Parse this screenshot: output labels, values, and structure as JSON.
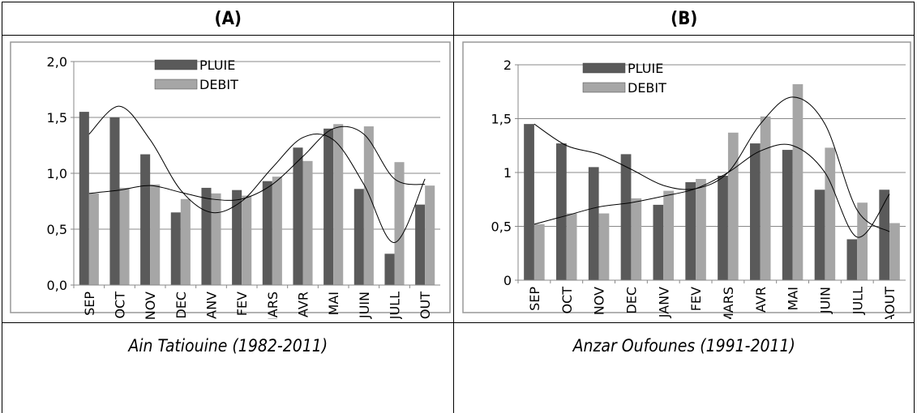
{
  "table": {
    "headers": [
      "(A)",
      "(B)"
    ],
    "captions": [
      "Ain Tatiouine (1982-2011)",
      "Anzar Oufounes (1991-2011)"
    ]
  },
  "chart_data": [
    {
      "type": "bar",
      "categories": [
        "SEP",
        "OCT",
        "NOV",
        "DEC",
        "JANV",
        "FEV",
        "MARS",
        "AVR",
        "MAI",
        "JUIN",
        "JULL",
        "AOUT"
      ],
      "series": [
        {
          "name": "PLUIE",
          "color": "#5a5a5a",
          "values": [
            1.55,
            1.5,
            1.17,
            0.65,
            0.87,
            0.85,
            0.93,
            1.23,
            1.4,
            0.86,
            0.28,
            0.72
          ],
          "trend_values": [
            1.35,
            1.6,
            1.3,
            0.85,
            0.65,
            0.75,
            1.05,
            1.32,
            1.3,
            0.9,
            0.38,
            0.95
          ]
        },
        {
          "name": "DEBIT",
          "color": "#a6a6a6",
          "values": [
            0.82,
            0.87,
            0.9,
            0.77,
            0.82,
            0.8,
            0.97,
            1.11,
            1.44,
            1.42,
            1.1,
            0.89
          ],
          "trend_values": [
            0.82,
            0.85,
            0.89,
            0.83,
            0.77,
            0.77,
            0.9,
            1.15,
            1.4,
            1.35,
            0.95,
            0.9
          ]
        }
      ],
      "ylim": [
        0,
        2
      ],
      "yticks": [
        {
          "value": 0,
          "label": "0,0"
        },
        {
          "value": 0.5,
          "label": "0,5"
        },
        {
          "value": 1,
          "label": "1,0"
        },
        {
          "value": 1.5,
          "label": "1,5"
        },
        {
          "value": 2,
          "label": "2,0"
        }
      ],
      "grid": true
    },
    {
      "type": "bar",
      "categories": [
        "SEP",
        "OCT",
        "NOV",
        "DEC",
        "JANV",
        "FEV",
        "MARS",
        "AVR",
        "MAI",
        "JUIN",
        "JULL",
        "AOUT"
      ],
      "series": [
        {
          "name": "PLUIE",
          "color": "#5a5a5a",
          "values": [
            1.45,
            1.27,
            1.05,
            1.17,
            0.7,
            0.91,
            0.97,
            1.27,
            1.21,
            0.84,
            0.38,
            0.84
          ],
          "trend_values": [
            1.45,
            1.25,
            1.17,
            1.03,
            0.88,
            0.85,
            1.0,
            1.45,
            1.7,
            1.45,
            0.65,
            0.45
          ]
        },
        {
          "name": "DEBIT",
          "color": "#a6a6a6",
          "values": [
            0.52,
            0.62,
            0.62,
            0.76,
            0.83,
            0.94,
            1.37,
            1.52,
            1.82,
            1.23,
            0.72,
            0.53
          ],
          "trend_values": [
            0.52,
            0.6,
            0.68,
            0.72,
            0.78,
            0.85,
            1.0,
            1.2,
            1.25,
            1.0,
            0.4,
            0.8
          ]
        }
      ],
      "ylim": [
        0,
        2
      ],
      "yticks": [
        0,
        {
          "value": 0.5,
          "label": "0,5"
        },
        1,
        {
          "value": 1.5,
          "label": "1,5"
        },
        2
      ],
      "grid": true
    }
  ]
}
